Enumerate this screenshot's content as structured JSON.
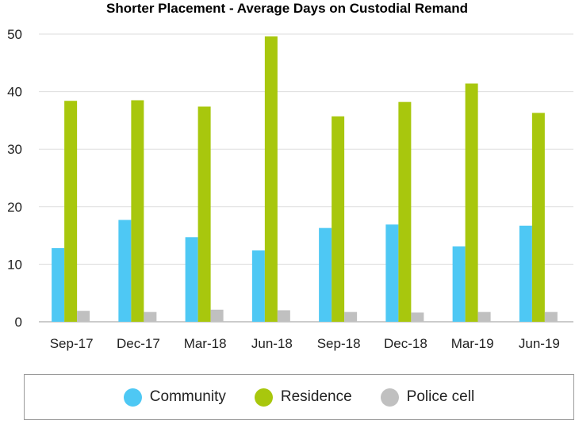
{
  "chart_data": {
    "type": "bar",
    "title": "Shorter Placement - Average Days on Custodial Remand",
    "categories": [
      "Sep-17",
      "Dec-17",
      "Mar-18",
      "Jun-18",
      "Sep-18",
      "Dec-18",
      "Mar-19",
      "Jun-19"
    ],
    "series": [
      {
        "name": "Community",
        "color": "#4ec8f4",
        "values": [
          12.8,
          17.7,
          14.7,
          12.4,
          16.3,
          16.9,
          13.1,
          16.7
        ]
      },
      {
        "name": "Residence",
        "color": "#a8c70d",
        "values": [
          38.4,
          38.5,
          37.4,
          49.6,
          35.7,
          38.2,
          41.4,
          36.3
        ]
      },
      {
        "name": "Police cell",
        "color": "#c0c0c0",
        "values": [
          1.9,
          1.7,
          2.1,
          2.0,
          1.7,
          1.6,
          1.7,
          1.7
        ]
      }
    ],
    "yticks": [
      0,
      10,
      20,
      30,
      40,
      50
    ],
    "ylim": [
      0,
      50
    ],
    "xlabel": "",
    "ylabel": "",
    "grid": true,
    "legend_position": "bottom"
  }
}
